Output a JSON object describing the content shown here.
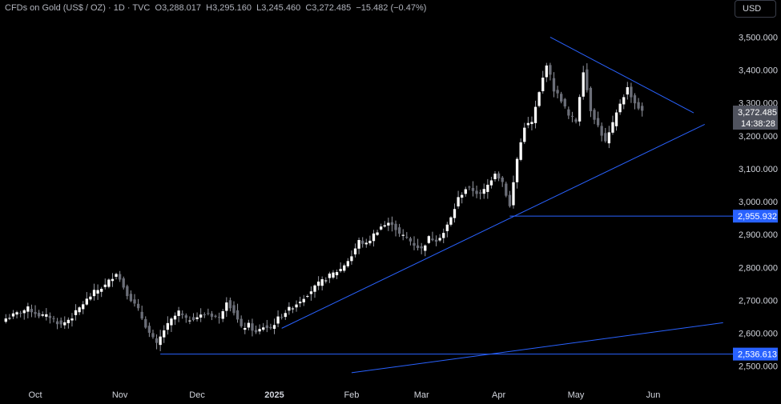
{
  "header": {
    "symbol": "CFDs on Gold (US$ / OZ)",
    "interval": "1D",
    "source": "TVC",
    "open_label": "O",
    "open": "3,288.017",
    "high_label": "H",
    "high": "3,295.160",
    "low_label": "L",
    "low": "3,245.460",
    "close_label": "C",
    "close": "3,272.485",
    "change": "−15.482 (−0.47%)",
    "sep": "·"
  },
  "currency_button": "USD",
  "price_label": {
    "value": "3,272.485",
    "countdown": "14:38:28",
    "bg": "#50535e"
  },
  "level_labels": [
    {
      "value": "2,955.932",
      "price": 2955.932,
      "bg": "#2962ff"
    },
    {
      "value": "2,536.613",
      "price": 2536.613,
      "bg": "#2962ff"
    }
  ],
  "colors": {
    "up": "#ffffff",
    "down": "#6b6e78",
    "wick": "#9598a1",
    "line": "#2962ff"
  },
  "chart_data": {
    "type": "candlestick",
    "title": "CFDs on Gold (US$ / OZ) · 1D · TVC",
    "ylim": [
      2470,
      3540
    ],
    "y_ticks": [
      {
        "v": 3500,
        "label": "3,500.000"
      },
      {
        "v": 3400,
        "label": "3,400.000"
      },
      {
        "v": 3300,
        "label": "3,300.000"
      },
      {
        "v": 3200,
        "label": "3,200.000"
      },
      {
        "v": 3100,
        "label": "3,100.000"
      },
      {
        "v": 3000,
        "label": "3,000.000"
      },
      {
        "v": 2900,
        "label": "2,900.000"
      },
      {
        "v": 2800,
        "label": "2,800.000"
      },
      {
        "v": 2700,
        "label": "2,700.000"
      },
      {
        "v": 2600,
        "label": "2,600.000"
      },
      {
        "v": 2500,
        "label": "2,500.000"
      }
    ],
    "x_ticks": [
      {
        "i": 8,
        "label": "Oct",
        "bold": false
      },
      {
        "i": 31,
        "label": "Nov",
        "bold": false
      },
      {
        "i": 52,
        "label": "Dec",
        "bold": false
      },
      {
        "i": 73,
        "label": "2025",
        "bold": true
      },
      {
        "i": 94,
        "label": "Feb",
        "bold": false
      },
      {
        "i": 113,
        "label": "Mar",
        "bold": false
      },
      {
        "i": 134,
        "label": "Apr",
        "bold": false
      },
      {
        "i": 155,
        "label": "May",
        "bold": false
      },
      {
        "i": 176,
        "label": "Jun",
        "bold": false
      }
    ],
    "x_count": 196,
    "trendlines": [
      {
        "name": "rising-support",
        "from": [
          75,
          2615
        ],
        "to": [
          190,
          3235
        ]
      },
      {
        "name": "falling-resistance",
        "from": [
          148,
          3500
        ],
        "to": [
          187,
          3270
        ]
      },
      {
        "name": "long-support",
        "from": [
          94,
          2480
        ],
        "to": [
          195,
          2632
        ]
      }
    ],
    "horizontal_levels": [
      {
        "name": "level-2955",
        "price": 2955.932,
        "from_index": 137
      },
      {
        "name": "level-2536",
        "price": 2536.613,
        "from_index": 42
      }
    ],
    "anchors": [
      [
        0,
        2645
      ],
      [
        3,
        2660
      ],
      [
        6,
        2675
      ],
      [
        9,
        2655
      ],
      [
        12,
        2650
      ],
      [
        15,
        2625
      ],
      [
        18,
        2650
      ],
      [
        21,
        2690
      ],
      [
        24,
        2725
      ],
      [
        27,
        2745
      ],
      [
        30,
        2785
      ],
      [
        33,
        2720
      ],
      [
        36,
        2670
      ],
      [
        39,
        2600
      ],
      [
        41,
        2565
      ],
      [
        43,
        2610
      ],
      [
        45,
        2640
      ],
      [
        47,
        2665
      ],
      [
        49,
        2640
      ],
      [
        52,
        2650
      ],
      [
        55,
        2660
      ],
      [
        58,
        2645
      ],
      [
        60,
        2700
      ],
      [
        62,
        2665
      ],
      [
        64,
        2615
      ],
      [
        66,
        2625
      ],
      [
        68,
        2600
      ],
      [
        70,
        2620
      ],
      [
        72,
        2615
      ],
      [
        74,
        2645
      ],
      [
        76,
        2665
      ],
      [
        79,
        2690
      ],
      [
        82,
        2720
      ],
      [
        85,
        2750
      ],
      [
        88,
        2775
      ],
      [
        91,
        2795
      ],
      [
        94,
        2835
      ],
      [
        96,
        2880
      ],
      [
        98,
        2870
      ],
      [
        100,
        2900
      ],
      [
        102,
        2925
      ],
      [
        105,
        2935
      ],
      [
        107,
        2900
      ],
      [
        109,
        2890
      ],
      [
        111,
        2870
      ],
      [
        113,
        2855
      ],
      [
        115,
        2890
      ],
      [
        117,
        2885
      ],
      [
        119,
        2905
      ],
      [
        121,
        2950
      ],
      [
        123,
        3010
      ],
      [
        125,
        3040
      ],
      [
        127,
        3035
      ],
      [
        129,
        3020
      ],
      [
        131,
        3050
      ],
      [
        133,
        3090
      ],
      [
        135,
        3060
      ],
      [
        137,
        2985
      ],
      [
        139,
        3130
      ],
      [
        141,
        3230
      ],
      [
        143,
        3240
      ],
      [
        145,
        3330
      ],
      [
        147,
        3420
      ],
      [
        149,
        3340
      ],
      [
        151,
        3310
      ],
      [
        153,
        3260
      ],
      [
        155,
        3245
      ],
      [
        157,
        3400
      ],
      [
        159,
        3280
      ],
      [
        161,
        3230
      ],
      [
        163,
        3180
      ],
      [
        165,
        3235
      ],
      [
        167,
        3300
      ],
      [
        169,
        3345
      ],
      [
        171,
        3300
      ],
      [
        173,
        3272
      ]
    ],
    "last_close": 3272.485
  }
}
